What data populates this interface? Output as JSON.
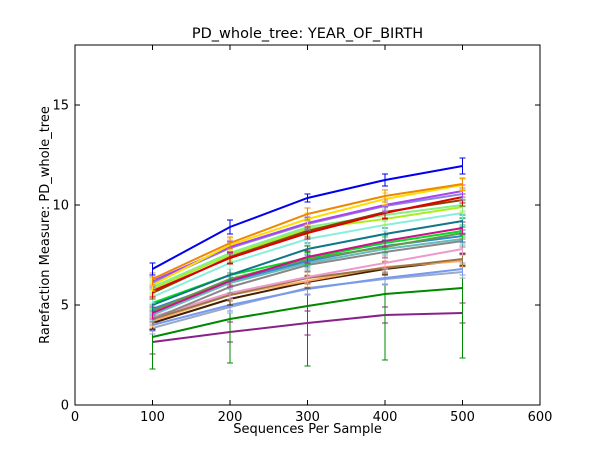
{
  "chart_data": {
    "type": "line",
    "title": "PD_whole_tree: YEAR_OF_BIRTH",
    "xlabel": "Sequences Per Sample",
    "ylabel": "Rarefaction Measure: PD_whole_tree",
    "xlim": [
      0,
      600
    ],
    "ylim": [
      0,
      18
    ],
    "xticks": [
      0,
      100,
      200,
      300,
      400,
      500,
      600
    ],
    "yticks": [
      0,
      5,
      10,
      15
    ],
    "grid": false,
    "legend": "none",
    "x": [
      100,
      200,
      300,
      400,
      500
    ],
    "series": [
      {
        "color": "#0000ee",
        "values": [
          6.8,
          8.9,
          10.35,
          11.25,
          11.95
        ],
        "err": [
          0.3,
          0.35,
          0.2,
          0.3,
          0.4
        ]
      },
      {
        "color": "#ee8800",
        "values": [
          6.3,
          8.1,
          9.55,
          10.45,
          11.05
        ],
        "err": [
          0.3,
          0.3,
          0.3,
          0.3,
          0.3
        ]
      },
      {
        "color": "#ffdd00",
        "values": [
          6.0,
          8.0,
          9.3,
          10.3,
          11.0
        ],
        "err": [
          0.3,
          0.3,
          0.3,
          0.3,
          0.3
        ]
      },
      {
        "color": "#aa44ee",
        "values": [
          6.2,
          7.9,
          9.1,
          10.0,
          10.7
        ],
        "err": [
          0.3,
          0.3,
          0.3,
          0.3,
          0.3
        ]
      },
      {
        "color": "#8888dd",
        "values": [
          6.1,
          7.85,
          9.05,
          9.95,
          10.55
        ],
        "err": [
          0.3,
          0.3,
          0.3,
          0.3,
          0.3
        ]
      },
      {
        "color": "#dd0000",
        "values": [
          5.7,
          7.35,
          8.6,
          9.6,
          10.4
        ],
        "err": [
          0.3,
          0.3,
          0.3,
          0.3,
          0.3
        ]
      },
      {
        "color": "#884400",
        "values": [
          5.6,
          7.4,
          8.7,
          9.65,
          10.25
        ],
        "err": [
          0.3,
          0.3,
          0.3,
          0.3,
          0.3
        ]
      },
      {
        "color": "#88ee88",
        "values": [
          5.9,
          7.6,
          8.9,
          9.5,
          10.0
        ],
        "err": [
          0.3,
          0.3,
          0.3,
          0.3,
          0.3
        ]
      },
      {
        "color": "#aaee22",
        "values": [
          5.8,
          7.5,
          8.8,
          9.3,
          9.9
        ],
        "err": [
          0.3,
          0.3,
          0.3,
          0.3,
          0.3
        ]
      },
      {
        "color": "#88eedd",
        "values": [
          5.4,
          7.1,
          8.3,
          9.0,
          9.6
        ],
        "err": [
          0.3,
          0.3,
          0.3,
          0.3,
          0.3
        ]
      },
      {
        "color": "#117788",
        "values": [
          5.0,
          6.5,
          7.8,
          8.55,
          9.2
        ],
        "err": [
          0.3,
          0.3,
          0.3,
          0.3,
          0.3
        ]
      },
      {
        "color": "#cc1188",
        "values": [
          4.6,
          6.2,
          7.4,
          8.2,
          8.85
        ],
        "err": [
          0.3,
          0.3,
          0.3,
          0.3,
          0.3
        ]
      },
      {
        "color": "#00dd22",
        "values": [
          5.1,
          6.5,
          7.35,
          8.1,
          8.7
        ],
        "err": [
          0.3,
          0.3,
          0.3,
          0.3,
          0.3
        ]
      },
      {
        "color": "#669944",
        "values": [
          4.7,
          6.3,
          7.3,
          7.9,
          8.6
        ],
        "err": [
          0.3,
          0.3,
          0.3,
          0.3,
          0.3
        ]
      },
      {
        "color": "#3388cc",
        "values": [
          4.8,
          6.2,
          7.2,
          7.95,
          8.45
        ],
        "err": [
          0.3,
          0.3,
          0.3,
          0.3,
          0.3
        ]
      },
      {
        "color": "#66bbbb",
        "values": [
          4.5,
          6.1,
          7.1,
          7.8,
          8.3
        ],
        "err": [
          0.3,
          0.3,
          0.3,
          0.3,
          0.3
        ]
      },
      {
        "color": "#888888",
        "values": [
          4.3,
          5.9,
          7.0,
          7.65,
          8.2
        ],
        "err": [
          0.3,
          0.3,
          0.3,
          0.3,
          0.3
        ]
      },
      {
        "color": "#ee99cc",
        "values": [
          4.4,
          5.6,
          6.4,
          7.1,
          7.8
        ],
        "err": [
          0.3,
          0.3,
          0.3,
          0.3,
          0.3
        ]
      },
      {
        "color": "#997744",
        "values": [
          4.3,
          5.5,
          6.35,
          6.85,
          7.3
        ],
        "err": [
          0.3,
          0.3,
          0.3,
          0.3,
          0.3
        ]
      },
      {
        "color": "#ffaa66",
        "values": [
          4.2,
          5.5,
          6.2,
          6.9,
          7.2
        ],
        "err": [
          0.3,
          0.3,
          0.3,
          0.3,
          0.3
        ]
      },
      {
        "color": "#442200",
        "values": [
          4.1,
          5.3,
          6.15,
          6.8,
          7.25
        ],
        "err": [
          0.3,
          0.3,
          0.3,
          0.3,
          0.3
        ]
      },
      {
        "color": "#7799ee",
        "values": [
          4.0,
          5.0,
          5.8,
          6.35,
          6.8
        ],
        "err": [
          0.3,
          0.3,
          0.3,
          0.3,
          0.3
        ]
      },
      {
        "color": "#99aacc",
        "values": [
          3.85,
          4.9,
          5.85,
          6.3,
          6.65
        ],
        "err": [
          0.3,
          0.3,
          0.3,
          0.3,
          0.3
        ]
      },
      {
        "color": "#008800",
        "values": [
          3.4,
          4.3,
          4.95,
          5.55,
          5.85
        ],
        "err": [
          1.6,
          2.2,
          3.0,
          3.3,
          3.5
        ]
      },
      {
        "color": "#882288",
        "values": [
          3.15,
          3.65,
          4.1,
          4.5,
          4.6
        ],
        "err": [
          0.6,
          0.5,
          0.6,
          0.4,
          0.5
        ]
      }
    ]
  }
}
